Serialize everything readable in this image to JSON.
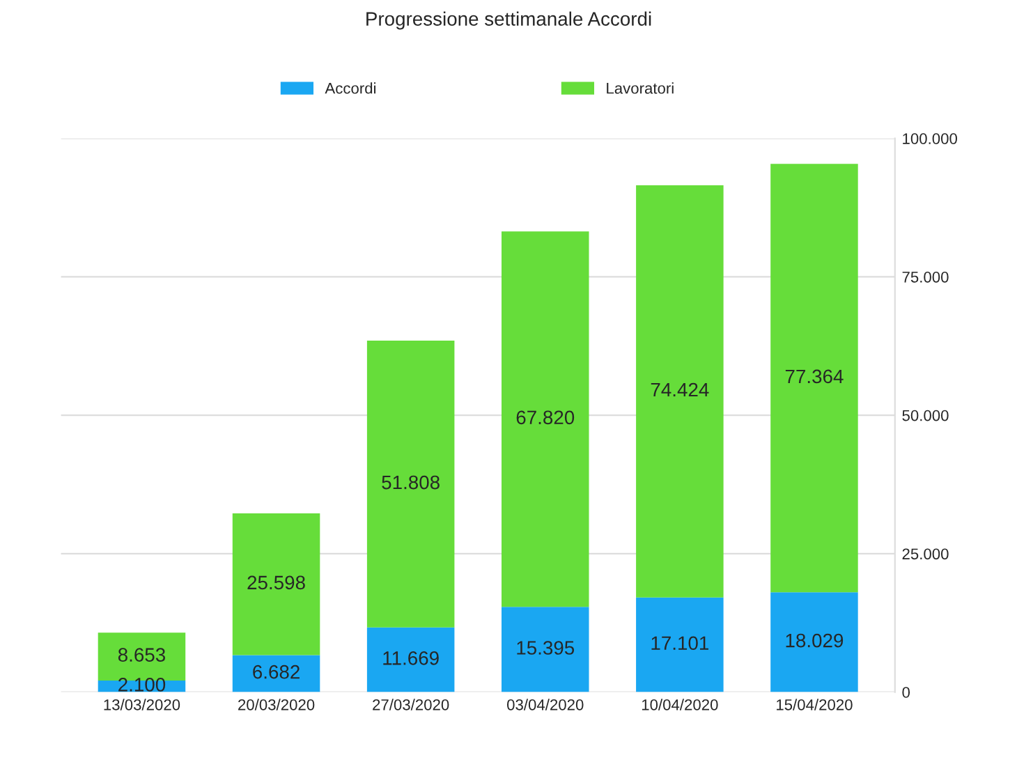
{
  "chart_data": {
    "type": "bar",
    "title": "Progressione settimanale Accordi",
    "stacked": true,
    "categories": [
      "13/03/2020",
      "20/03/2020",
      "27/03/2020",
      "03/04/2020",
      "10/04/2020",
      "15/04/2020"
    ],
    "series": [
      {
        "name": "Accordi",
        "color": "#1aa7f2",
        "values": [
          2100,
          6682,
          11669,
          15395,
          17101,
          18029
        ],
        "value_labels": [
          "2.100",
          "6.682",
          "11.669",
          "15.395",
          "17.101",
          "18.029"
        ]
      },
      {
        "name": "Lavoratori",
        "color": "#66dd3a",
        "values": [
          8653,
          25598,
          51808,
          67820,
          74424,
          77364
        ],
        "value_labels": [
          "8.653",
          "25.598",
          "51.808",
          "67.820",
          "74.424",
          "77.364"
        ]
      }
    ],
    "ylim": [
      0,
      100000
    ],
    "yticks": [
      {
        "value": 0,
        "label": "0"
      },
      {
        "value": 25000,
        "label": "25.000"
      },
      {
        "value": 50000,
        "label": "50.000"
      },
      {
        "value": 75000,
        "label": "75.000"
      },
      {
        "value": 100000,
        "label": "100.000"
      }
    ],
    "grid": "y",
    "legend": "top"
  }
}
